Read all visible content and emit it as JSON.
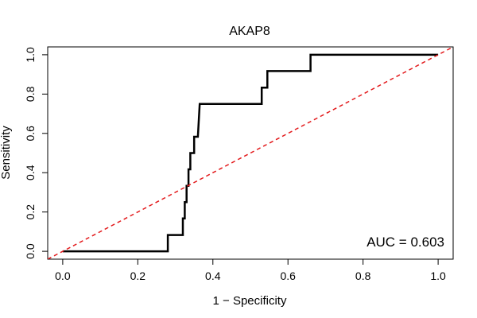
{
  "chart_data": {
    "type": "line",
    "title": "AKAP8",
    "xlabel": "1 − Specificity",
    "ylabel": "Sensitivity",
    "xlim": [
      -0.04,
      1.04
    ],
    "ylim": [
      -0.04,
      1.04
    ],
    "x_ticks": [
      0.0,
      0.2,
      0.4,
      0.6,
      0.8,
      1.0
    ],
    "y_ticks": [
      0.0,
      0.2,
      0.4,
      0.6,
      0.8,
      1.0
    ],
    "x_tick_labels": [
      "0.0",
      "0.2",
      "0.4",
      "0.6",
      "0.8",
      "1.0"
    ],
    "y_tick_labels": [
      "0.0",
      "0.2",
      "0.4",
      "0.6",
      "0.8",
      "1.0"
    ],
    "grid": false,
    "annotation": "AUC = 0.603",
    "series": [
      {
        "style": "solid",
        "color": "#000000",
        "points": [
          [
            0.0,
            0.0
          ],
          [
            0.28,
            0.0
          ],
          [
            0.28,
            0.083
          ],
          [
            0.32,
            0.083
          ],
          [
            0.32,
            0.167
          ],
          [
            0.325,
            0.167
          ],
          [
            0.325,
            0.25
          ],
          [
            0.33,
            0.25
          ],
          [
            0.33,
            0.333
          ],
          [
            0.335,
            0.333
          ],
          [
            0.335,
            0.417
          ],
          [
            0.34,
            0.417
          ],
          [
            0.34,
            0.5
          ],
          [
            0.35,
            0.5
          ],
          [
            0.35,
            0.583
          ],
          [
            0.36,
            0.583
          ],
          [
            0.365,
            0.75
          ],
          [
            0.53,
            0.75
          ],
          [
            0.53,
            0.833
          ],
          [
            0.545,
            0.833
          ],
          [
            0.545,
            0.917
          ],
          [
            0.66,
            0.917
          ],
          [
            0.66,
            1.0
          ],
          [
            1.0,
            1.0
          ]
        ]
      },
      {
        "style": "dashed",
        "color": "#e31a1c",
        "points": [
          [
            -0.04,
            -0.04
          ],
          [
            1.04,
            1.04
          ]
        ]
      }
    ]
  }
}
